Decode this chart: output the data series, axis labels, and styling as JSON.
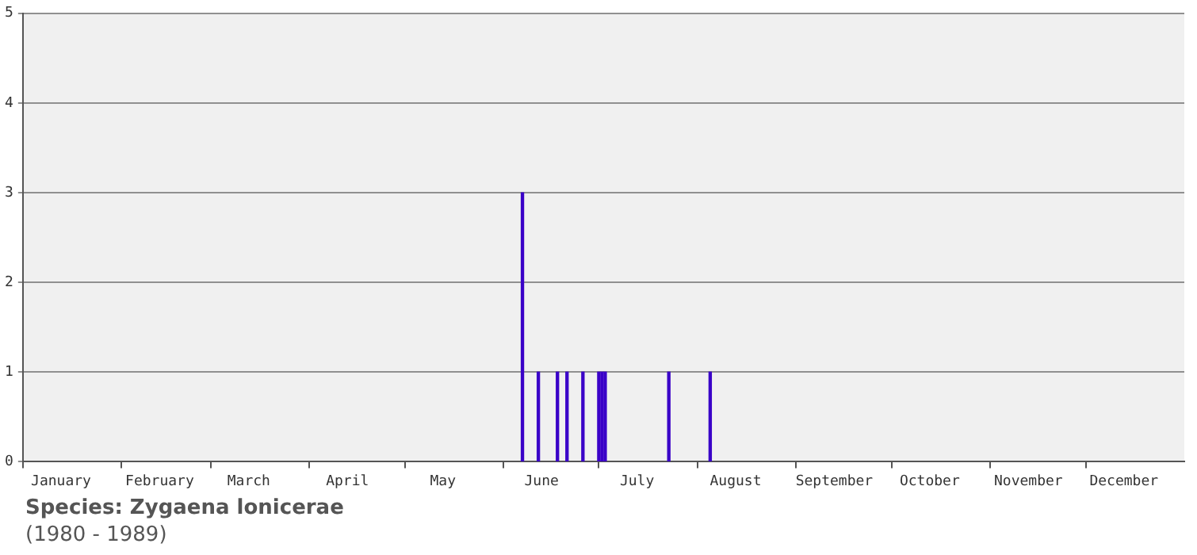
{
  "chart_data": {
    "type": "bar",
    "x": [
      "--06-07",
      "--06-12",
      "--06-18",
      "--06-21",
      "--06-26",
      "--07-01",
      "--07-02",
      "--07-03",
      "--07-23",
      "--08-05"
    ],
    "values": [
      3,
      1,
      1,
      1,
      1,
      1,
      1,
      1,
      1,
      1
    ],
    "color": "#3a00c8",
    "xlim": [
      "--01-01",
      "--12-31"
    ],
    "xticks": [
      {
        "value": "--01-01",
        "label": null
      },
      {
        "value": "--01-13",
        "label": "January"
      },
      {
        "value": "--02-01",
        "label": null
      },
      {
        "value": "--02-13",
        "label": "February"
      },
      {
        "value": "--03-01",
        "label": null
      },
      {
        "value": "--03-13",
        "label": "March"
      },
      {
        "value": "--04-01",
        "label": null
      },
      {
        "value": "--04-13",
        "label": "April"
      },
      {
        "value": "--05-01",
        "label": null
      },
      {
        "value": "--05-13",
        "label": "May"
      },
      {
        "value": "--06-01",
        "label": null
      },
      {
        "value": "--06-13",
        "label": "June"
      },
      {
        "value": "--07-01",
        "label": null
      },
      {
        "value": "--07-13",
        "label": "July"
      },
      {
        "value": "--08-01",
        "label": null
      },
      {
        "value": "--08-13",
        "label": "August"
      },
      {
        "value": "--09-01",
        "label": null
      },
      {
        "value": "--09-13",
        "label": "September"
      },
      {
        "value": "--10-01",
        "label": null
      },
      {
        "value": "--10-13",
        "label": "October"
      },
      {
        "value": "--11-01",
        "label": null
      },
      {
        "value": "--11-13",
        "label": "November"
      },
      {
        "value": "--12-01",
        "label": null
      },
      {
        "value": "--12-13",
        "label": "December"
      }
    ],
    "ylim": [
      0,
      5
    ],
    "yticks": [
      0,
      1,
      2,
      3,
      4,
      5
    ],
    "grid": "y",
    "legend": false,
    "annotations": [
      "Species: Zygaena lonicerae",
      "(1980 - 1989)"
    ]
  }
}
